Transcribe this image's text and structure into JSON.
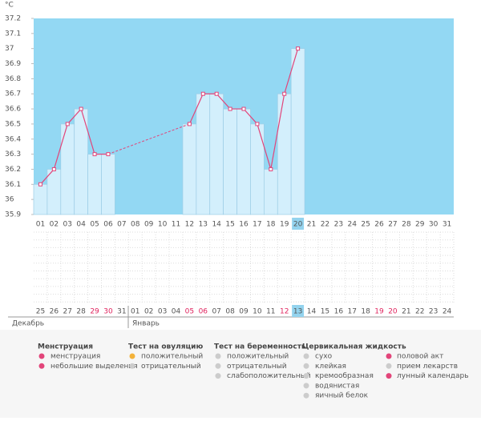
{
  "chart_data": {
    "type": "line",
    "y_label": "°C",
    "categories": [
      "01",
      "02",
      "03",
      "04",
      "05",
      "06",
      "07",
      "08",
      "09",
      "10",
      "11",
      "12",
      "13",
      "14",
      "15",
      "16",
      "17",
      "18",
      "19",
      "20",
      "21",
      "22",
      "23",
      "24",
      "25",
      "26",
      "27",
      "28",
      "29",
      "30",
      "31"
    ],
    "values": [
      36.1,
      36.2,
      36.5,
      36.6,
      36.3,
      36.3,
      null,
      null,
      null,
      null,
      null,
      36.5,
      36.7,
      36.7,
      36.6,
      36.6,
      36.5,
      36.2,
      36.7,
      37,
      null,
      null,
      null,
      null,
      null,
      null,
      null,
      null,
      null,
      null,
      null
    ],
    "highlighted_category": "20",
    "color": "#e2457a",
    "bar_color": "#d3effc",
    "background": "#93d8f3",
    "ylim": [
      35.9,
      37.2
    ],
    "yticks": [
      35.9,
      36,
      36.1,
      36.2,
      36.3,
      36.4,
      36.5,
      36.6,
      36.7,
      36.8,
      36.9,
      37,
      37.1,
      37.2
    ],
    "dates": [
      {
        "day": "25"
      },
      {
        "day": "26"
      },
      {
        "day": "27"
      },
      {
        "day": "28"
      },
      {
        "day": "29",
        "red": true
      },
      {
        "day": "30",
        "red": true
      },
      {
        "day": "31"
      },
      {
        "day": "01"
      },
      {
        "day": "02"
      },
      {
        "day": "03"
      },
      {
        "day": "04"
      },
      {
        "day": "05",
        "red": true
      },
      {
        "day": "06",
        "red": true
      },
      {
        "day": "07"
      },
      {
        "day": "08"
      },
      {
        "day": "09"
      },
      {
        "day": "10"
      },
      {
        "day": "11"
      },
      {
        "day": "12",
        "red": true
      },
      {
        "day": "13",
        "highlight": true
      },
      {
        "day": "14"
      },
      {
        "day": "15"
      },
      {
        "day": "16"
      },
      {
        "day": "17"
      },
      {
        "day": "18"
      },
      {
        "day": "19",
        "red": true
      },
      {
        "day": "20",
        "red": true
      },
      {
        "day": "21"
      },
      {
        "day": "22"
      },
      {
        "day": "23"
      },
      {
        "day": "24"
      }
    ],
    "months": [
      "Декабрь",
      "Январь"
    ]
  },
  "legend": {
    "groups": [
      {
        "title": "Менструация",
        "items": [
          "менструация",
          "небольшие выделения"
        ]
      },
      {
        "title": "Тест на овуляцию",
        "items": [
          "положительный",
          "отрицательный"
        ]
      },
      {
        "title": "Тест на беременность",
        "items": [
          "положительный",
          "отрицательный",
          "слабоположительный"
        ]
      },
      {
        "title": "Цервикальная жидкость",
        "items": [
          "сухо",
          "клейкая",
          "кремообразная",
          "водянистая",
          "яичный белок"
        ]
      }
    ],
    "extra_items": [
      "половой акт",
      "прием лекарств",
      "лунный календарь"
    ]
  }
}
